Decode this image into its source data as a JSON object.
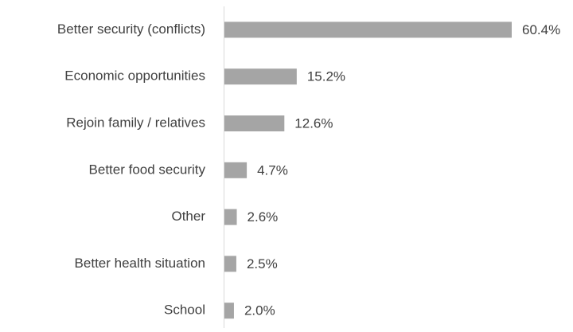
{
  "chart_data": {
    "type": "hbar",
    "categories": [
      "Better security (conflicts)",
      "Economic opportunities",
      "Rejoin family / relatives",
      "Better food security",
      "Other",
      "Better health situation",
      "School"
    ],
    "values": [
      60.4,
      15.2,
      12.6,
      4.7,
      2.6,
      2.5,
      2.0
    ],
    "value_labels": [
      "60.4%",
      "15.2%",
      "12.6%",
      "4.7%",
      "2.6%",
      "2.5%",
      "2.0%"
    ],
    "color": "#a5a5a5"
  }
}
